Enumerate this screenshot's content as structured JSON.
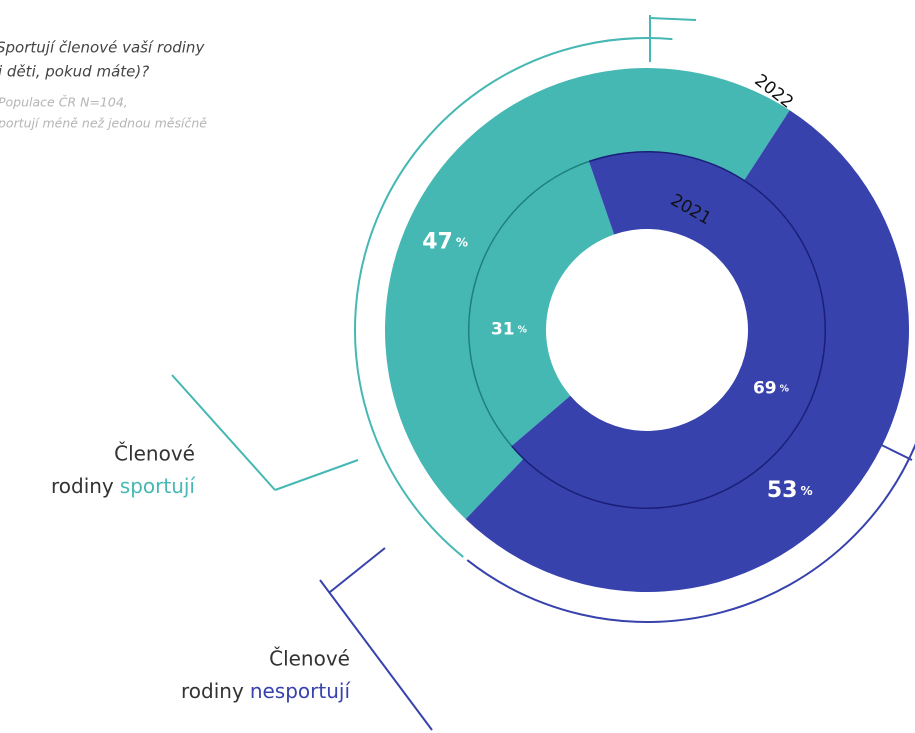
{
  "chart_data": {
    "type": "nested-donut",
    "title": [
      "Sportují členové vaší rodiny",
      "i děti, pokud máte)?"
    ],
    "subtitle": [
      "Populace ČR N=104,",
      "portují méně než jednou měsíčně"
    ],
    "rings": [
      "2021",
      "2022"
    ],
    "unit": "%",
    "legend_prefix": [
      "Členové",
      "rodiny"
    ],
    "series": [
      {
        "name": "sportují",
        "color": "#45b8b4",
        "values": [
          31,
          47
        ]
      },
      {
        "name": "nesportují",
        "color": "#3742ad",
        "values": [
          69,
          53
        ]
      }
    ]
  }
}
